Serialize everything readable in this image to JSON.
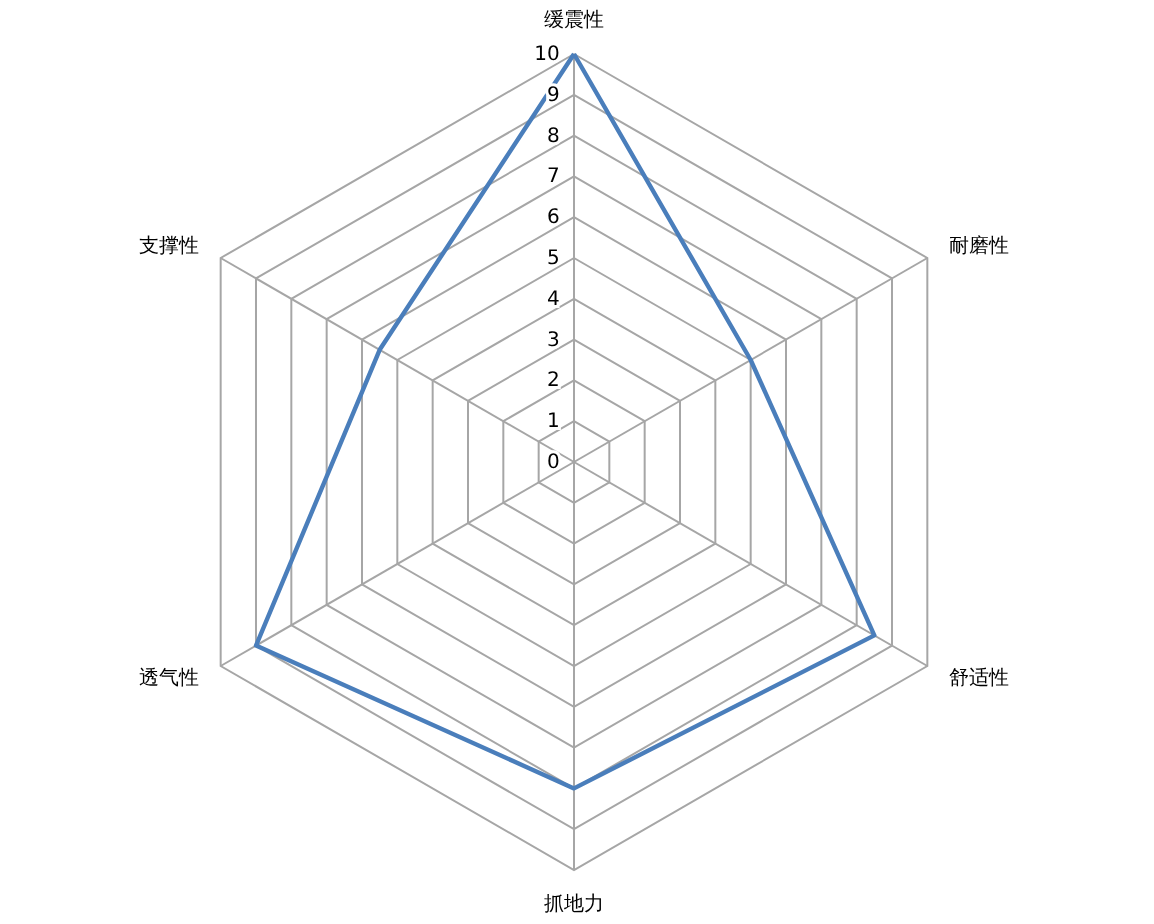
{
  "chart_data": {
    "type": "radar",
    "categories": [
      "缓震性",
      "耐磨性",
      "舒适性",
      "抓地力",
      "透气性",
      "支撑性"
    ],
    "series": [
      {
        "color": "#4a7ebb",
        "values": [
          10,
          5,
          8.5,
          8,
          9,
          5.5
        ]
      }
    ],
    "ylim": [
      0,
      10
    ],
    "yticks": [
      0,
      1,
      2,
      3,
      4,
      5,
      6,
      7,
      8,
      9,
      10
    ],
    "grid": true
  }
}
